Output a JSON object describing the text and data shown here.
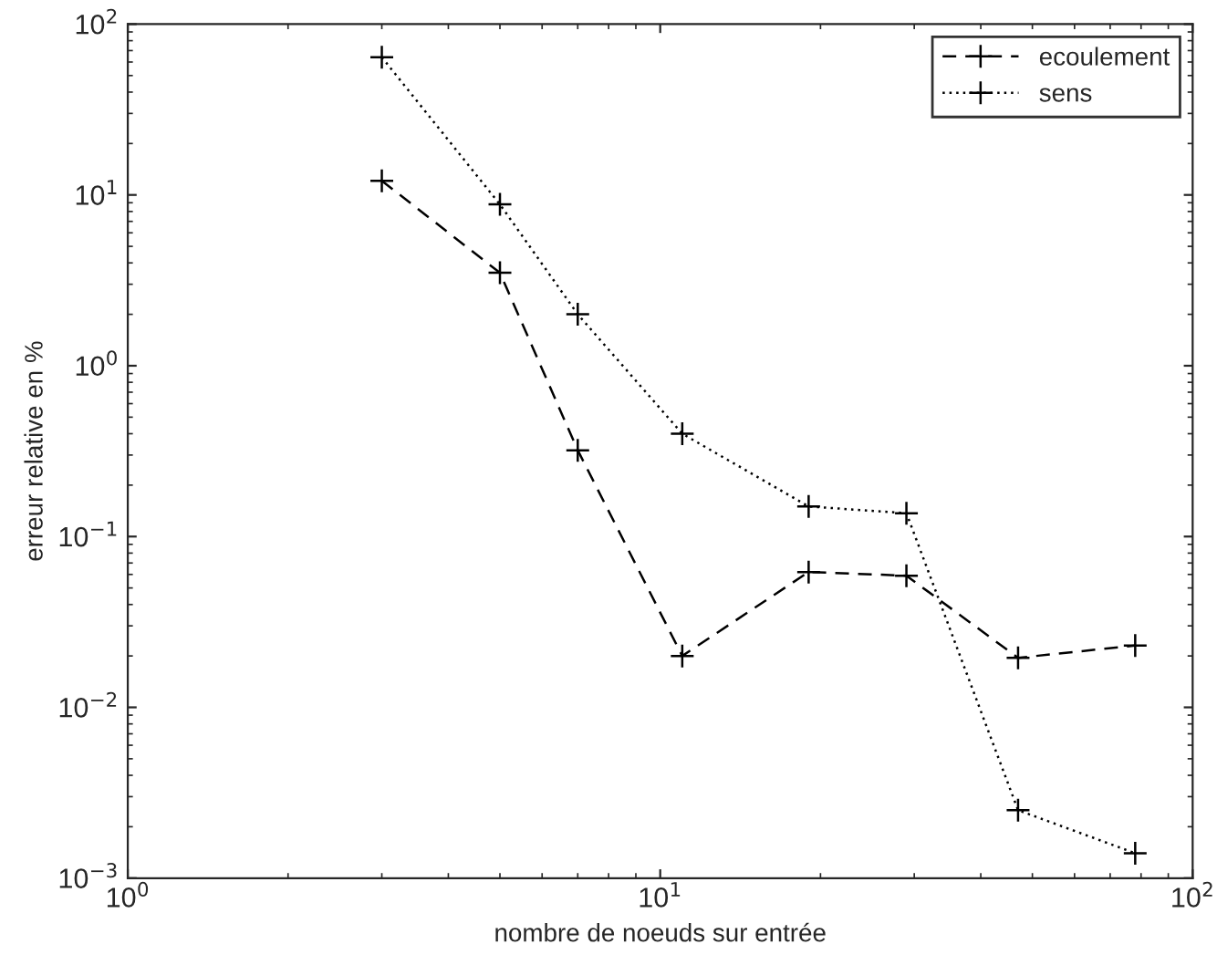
{
  "chart_data": {
    "type": "line",
    "xlabel": "nombre de noeuds sur entrée",
    "ylabel": "erreur relative en %",
    "log": "xy",
    "xlim": [
      1,
      100
    ],
    "ylim": [
      0.001,
      100
    ],
    "xticks": [
      {
        "value": 1,
        "label": "10$^{0}$"
      },
      {
        "value": 10,
        "label": "10$^{1}$"
      },
      {
        "value": 100,
        "label": "10$^{2}$"
      }
    ],
    "yticks": [
      {
        "value": 0.001,
        "label": "10$^{−3}$"
      },
      {
        "value": 0.01,
        "label": "10$^{−2}$"
      },
      {
        "value": 0.1,
        "label": "10$^{−1}$"
      },
      {
        "value": 1,
        "label": "10$^{0}$"
      },
      {
        "value": 10,
        "label": "10$^{1}$"
      },
      {
        "value": 100,
        "label": "10$^{2}$"
      }
    ],
    "x": [
      3,
      5,
      7,
      11,
      19,
      29,
      47,
      78
    ],
    "marker": "cross",
    "grid": false,
    "legend": "top right",
    "series": [
      {
        "name": "ecoulement",
        "color": "#000000",
        "line_style": "dashed",
        "values": [
          12.1,
          3.5,
          0.32,
          0.02,
          0.062,
          0.059,
          0.0195,
          0.023
        ]
      },
      {
        "name": "sens",
        "color": "#000000",
        "line_style": "dotted",
        "values": [
          64,
          8.8,
          2.0,
          0.4,
          0.15,
          0.137,
          0.0025,
          0.0014
        ]
      }
    ]
  }
}
